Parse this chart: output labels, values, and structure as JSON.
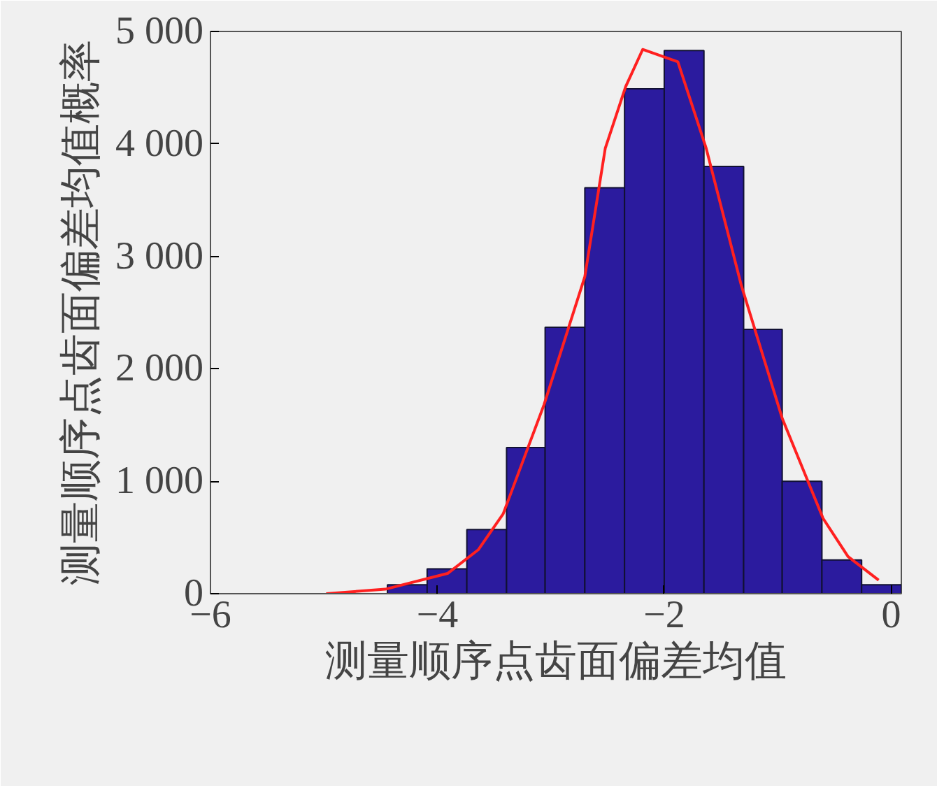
{
  "chart_data": {
    "type": "histogram",
    "xlabel": "测量顺序点齿面偏差均值",
    "ylabel": "测量顺序点齿面偏差均值概率",
    "bins": [
      -4.44,
      -4.09,
      -3.74,
      -3.39,
      -3.05,
      -2.7,
      -2.35,
      -2.0,
      -1.65,
      -1.3,
      -0.96,
      -0.61,
      -0.26,
      0.09
    ],
    "values": [
      80,
      220,
      570,
      1300,
      2370,
      3610,
      4490,
      4830,
      3800,
      2350,
      1000,
      300,
      80
    ],
    "color": "#2b1b9e",
    "series": [
      {
        "type": "line",
        "color": "#ff2020",
        "x": [
          -4.98,
          -4.46,
          -3.91,
          -3.64,
          -3.42,
          -3.06,
          -2.7,
          -2.52,
          -2.34,
          -2.19,
          -1.88,
          -1.63,
          -1.32,
          -0.96,
          -0.6,
          -0.38,
          -0.11
        ],
        "values": [
          0,
          40,
          180,
          390,
          710,
          1680,
          2820,
          3960,
          4510,
          4840,
          4730,
          3960,
          2740,
          1560,
          670,
          330,
          120
        ]
      }
    ],
    "xlim": [
      -6,
      0.09
    ],
    "ylim": [
      0,
      5000
    ],
    "xticks": [
      -6,
      -4,
      -2,
      0
    ],
    "yticks": [
      0,
      {
        "value": 1000,
        "label": "1 000"
      },
      {
        "value": 2000,
        "label": "2 000"
      },
      {
        "value": 3000,
        "label": "3 000"
      },
      {
        "value": 4000,
        "label": "4 000"
      },
      {
        "value": 5000,
        "label": "5 000"
      }
    ],
    "grid": false
  }
}
